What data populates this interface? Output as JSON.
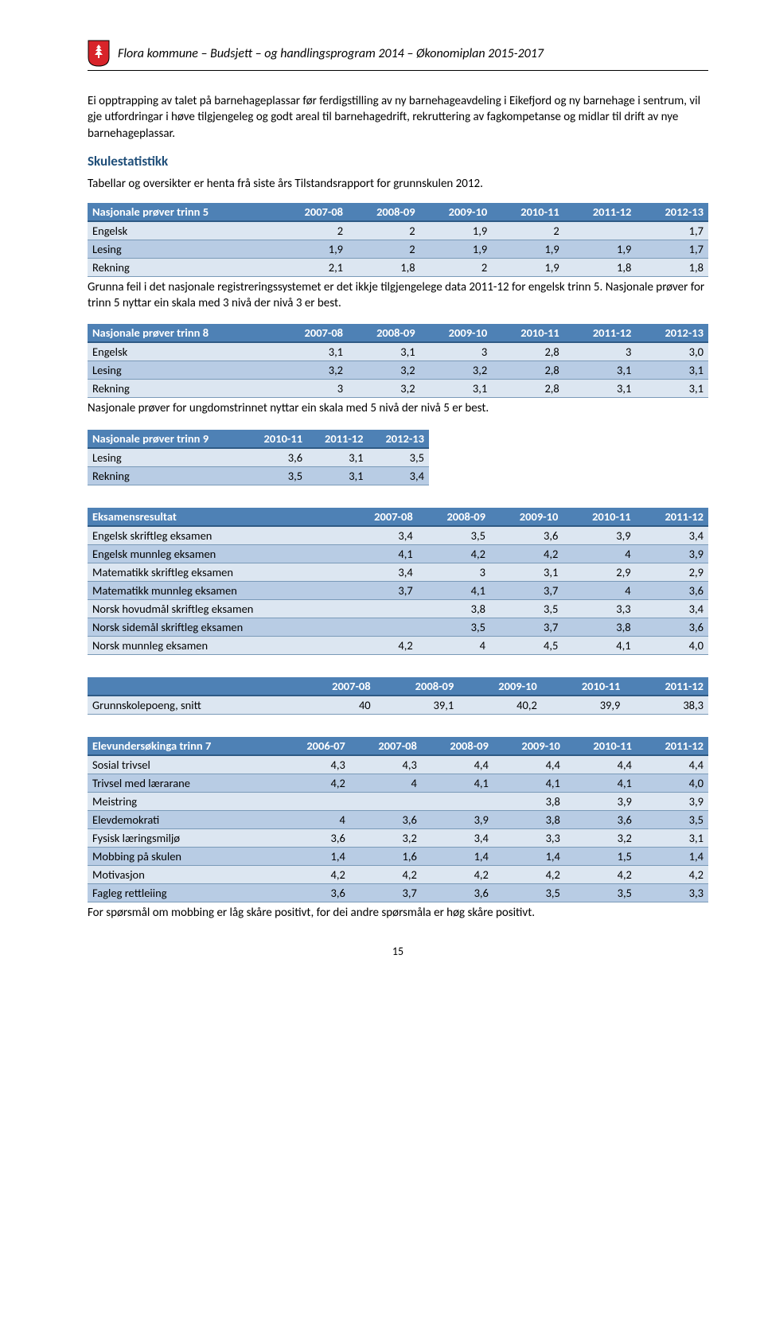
{
  "header": {
    "title": "Flora kommune – Budsjett – og handlingsprogram 2014 – Økonomiplan 2015-2017"
  },
  "crest": {
    "bg": "#d8242a",
    "stroke": "#000000",
    "emblem": "#ffffff"
  },
  "intro_paragraph": "Ei opptrapping av talet på barnehageplassar  før ferdigstilling av ny barnehageavdeling i Eikefjord og ny barnehage i sentrum, vil gje utfordringar i høve tilgjengeleg og godt areal til barnehagedrift, rekruttering av fagkompetanse og midlar til drift av nye barnehageplassar.",
  "stats_heading": "Skulestatistikk",
  "stats_subtext": "Tabellar og oversikter er henta frå siste års Tilstandsrapport for grunnskulen 2012.",
  "table_trinn5": {
    "caption": "Nasjonale prøver trinn 5",
    "columns": [
      "2007-08",
      "2008-09",
      "2009-10",
      "2010-11",
      "2011-12",
      "2012-13"
    ],
    "rows": [
      {
        "label": "Engelsk",
        "vals": [
          "2",
          "2",
          "1,9",
          "2",
          "",
          "1,7"
        ]
      },
      {
        "label": "Lesing",
        "vals": [
          "1,9",
          "2",
          "1,9",
          "1,9",
          "1,9",
          "1,7"
        ]
      },
      {
        "label": "Rekning",
        "vals": [
          "2,1",
          "1,8",
          "2",
          "1,9",
          "1,8",
          "1,8"
        ]
      }
    ],
    "note": "Grunna feil i det nasjonale registreringssystemet er det ikkje tilgjengelege data 2011-12 for engelsk trinn 5. Nasjonale prøver for trinn 5 nyttar ein skala med 3 nivå der nivå 3 er best."
  },
  "table_trinn8": {
    "caption": "Nasjonale prøver trinn 8",
    "columns": [
      "2007-08",
      "2008-09",
      "2009-10",
      "2010-11",
      "2011-12",
      "2012-13"
    ],
    "rows": [
      {
        "label": "Engelsk",
        "vals": [
          "3,1",
          "3,1",
          "3",
          "2,8",
          "3",
          "3,0"
        ]
      },
      {
        "label": "Lesing",
        "vals": [
          "3,2",
          "3,2",
          "3,2",
          "2,8",
          "3,1",
          "3,1"
        ]
      },
      {
        "label": "Rekning",
        "vals": [
          "3",
          "3,2",
          "3,1",
          "2,8",
          "3,1",
          "3,1"
        ]
      }
    ],
    "note": "Nasjonale prøver for ungdomstrinnet nyttar ein skala med 5 nivå der nivå 5 er best."
  },
  "table_trinn9": {
    "caption": "Nasjonale prøver trinn 9",
    "columns": [
      "2010-11",
      "2011-12",
      "2012-13"
    ],
    "rows": [
      {
        "label": "Lesing",
        "vals": [
          "3,6",
          "3,1",
          "3,5"
        ]
      },
      {
        "label": "Rekning",
        "vals": [
          "3,5",
          "3,1",
          "3,4"
        ]
      }
    ]
  },
  "table_eksamen": {
    "caption": "Eksamensresultat",
    "columns": [
      "2007-08",
      "2008-09",
      "2009-10",
      "2010-11",
      "2011-12"
    ],
    "rows": [
      {
        "label": "Engelsk skriftleg eksamen",
        "vals": [
          "3,4",
          "3,5",
          "3,6",
          "3,9",
          "3,4"
        ]
      },
      {
        "label": "Engelsk munnleg eksamen",
        "vals": [
          "4,1",
          "4,2",
          "4,2",
          "4",
          "3,9"
        ]
      },
      {
        "label": "Matematikk skriftleg eksamen",
        "vals": [
          "3,4",
          "3",
          "3,1",
          "2,9",
          "2,9"
        ]
      },
      {
        "label": "Matematikk munnleg eksamen",
        "vals": [
          "3,7",
          "4,1",
          "3,7",
          "4",
          "3,6"
        ]
      },
      {
        "label": "Norsk hovudmål skriftleg eksamen",
        "vals": [
          "",
          "3,8",
          "3,5",
          "3,3",
          "3,4"
        ]
      },
      {
        "label": "Norsk sidemål skriftleg eksamen",
        "vals": [
          "",
          "3,5",
          "3,7",
          "3,8",
          "3,6"
        ]
      },
      {
        "label": "Norsk munnleg eksamen",
        "vals": [
          "4,2",
          "4",
          "4,5",
          "4,1",
          "4,0"
        ]
      }
    ]
  },
  "table_grunnskolepoeng": {
    "caption": "",
    "columns": [
      "2007-08",
      "2008-09",
      "2009-10",
      "2010-11",
      "2011-12"
    ],
    "rows": [
      {
        "label": "Grunnskolepoeng, snitt",
        "vals": [
          "40",
          "39,1",
          "40,2",
          "39,9",
          "38,3"
        ]
      }
    ]
  },
  "table_elevundersokinga": {
    "caption": "Elevundersøkinga trinn 7",
    "columns": [
      "2006-07",
      "2007-08",
      "2008-09",
      "2009-10",
      "2010-11",
      "2011-12"
    ],
    "rows": [
      {
        "label": "Sosial trivsel",
        "vals": [
          "4,3",
          "4,3",
          "4,4",
          "4,4",
          "4,4",
          "4,4"
        ]
      },
      {
        "label": "Trivsel med lærarane",
        "vals": [
          "4,2",
          "4",
          "4,1",
          "4,1",
          "4,1",
          "4,0"
        ]
      },
      {
        "label": "Meistring",
        "vals": [
          "",
          "",
          "",
          "3,8",
          "3,9",
          "3,9"
        ]
      },
      {
        "label": "Elevdemokrati",
        "vals": [
          "4",
          "3,6",
          "3,9",
          "3,8",
          "3,6",
          "3,5"
        ]
      },
      {
        "label": "Fysisk læringsmiljø",
        "vals": [
          "3,6",
          "3,2",
          "3,4",
          "3,3",
          "3,2",
          "3,1"
        ]
      },
      {
        "label": "Mobbing på skulen",
        "vals": [
          "1,4",
          "1,6",
          "1,4",
          "1,4",
          "1,5",
          "1,4"
        ]
      },
      {
        "label": "Motivasjon",
        "vals": [
          "4,2",
          "4,2",
          "4,2",
          "4,2",
          "4,2",
          "4,2"
        ]
      },
      {
        "label": "Fagleg rettleiing",
        "vals": [
          "3,6",
          "3,7",
          "3,6",
          "3,5",
          "3,5",
          "3,3"
        ]
      }
    ],
    "note": "For spørsmål om mobbing er låg skåre positivt, for dei andre spørsmåla er høg skåre positivt."
  },
  "page_number": "15"
}
